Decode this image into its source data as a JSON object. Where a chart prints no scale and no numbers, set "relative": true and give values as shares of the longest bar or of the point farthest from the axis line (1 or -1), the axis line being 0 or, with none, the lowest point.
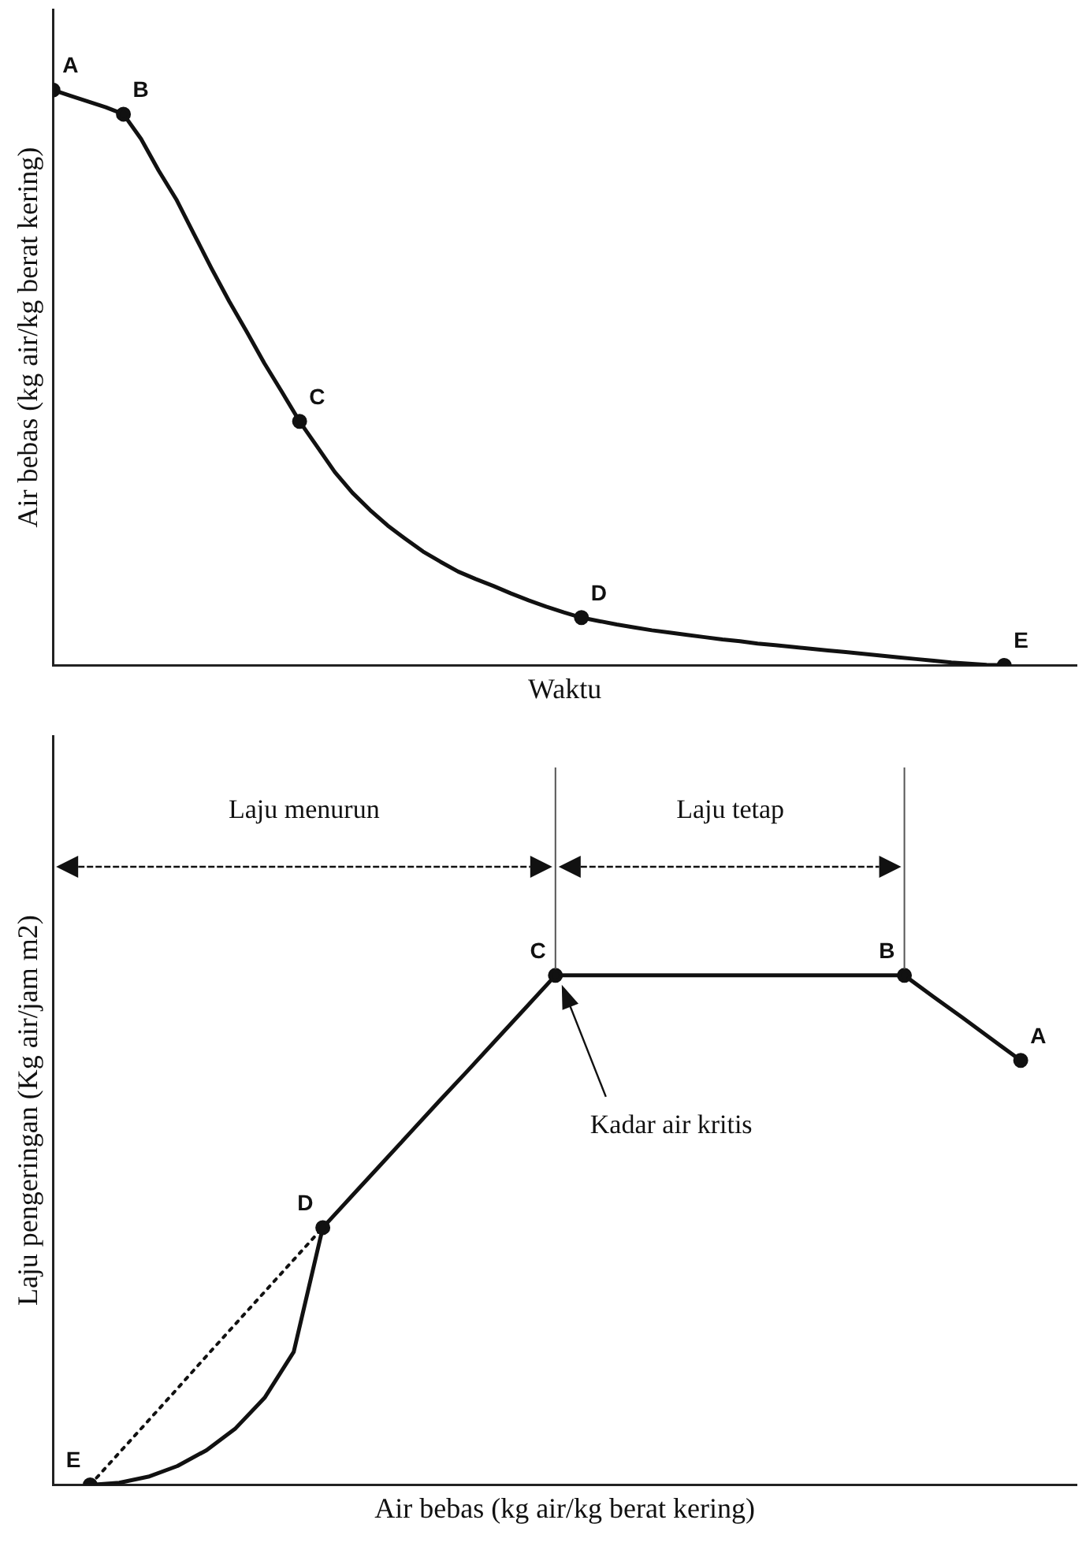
{
  "chart_data": [
    {
      "type": "line",
      "xlabel": "Waktu",
      "ylabel": "Air bebas (kg air/kg berat kering)",
      "relative": true,
      "grid": false,
      "legend": false,
      "categories": [
        null,
        null,
        null,
        null,
        null,
        null,
        null,
        null,
        null,
        null,
        null,
        null,
        null,
        null,
        null,
        null,
        null,
        null,
        null,
        null,
        null,
        null,
        null,
        null,
        null,
        null,
        null,
        null,
        null,
        null,
        null,
        null,
        null,
        null,
        null,
        null,
        null,
        null,
        null,
        null,
        null,
        null,
        null,
        null,
        null,
        null,
        null,
        null,
        null,
        null,
        null,
        null,
        null,
        null,
        null
      ],
      "series": [
        {
          "color": "#111111",
          "line_style": "solid",
          "values": [
            1,
            0.99,
            0.98,
            0.97,
            0.958,
            0.915,
            0.86,
            0.81,
            0.75,
            0.69,
            0.633,
            0.58,
            0.525,
            0.475,
            0.424,
            0.38,
            0.336,
            0.3,
            0.27,
            0.243,
            0.22,
            0.198,
            0.18,
            0.163,
            0.15,
            0.138,
            0.125,
            0.113,
            0.102,
            0.092,
            0.083,
            0.077,
            0.071,
            0.066,
            0.061,
            0.057,
            0.053,
            0.049,
            0.045,
            0.042,
            0.038,
            0.035,
            0.032,
            0.029,
            0.026,
            0.023,
            0.02,
            0.017,
            0.014,
            0.011,
            0.008,
            0.005,
            0.003,
            0.001,
            0
          ]
        }
      ],
      "annotations": [
        "A",
        "B",
        "C",
        "D",
        "E"
      ]
    },
    {
      "type": "line",
      "xlabel": "Air bebas (kg air/kg berat kering)",
      "ylabel": "Laju pengeringan (Kg air/jam m2)",
      "relative": true,
      "grid": false,
      "legend": false,
      "categories": [
        null,
        null,
        null,
        null,
        null,
        null,
        null,
        null,
        null,
        null,
        null,
        null,
        null,
        null,
        null,
        null,
        null,
        null,
        null,
        null,
        null,
        null,
        null,
        null,
        null,
        null,
        null,
        null,
        null,
        null,
        null,
        null,
        null
      ],
      "series": [
        {
          "color": "#111111",
          "line_style": "solid",
          "values": [
            0,
            0.004,
            0.016,
            0.037,
            0.068,
            0.111,
            0.171,
            0.261,
            0.505,
            0.567,
            0.629,
            0.691,
            0.753,
            0.814,
            0.876,
            0.938,
            1,
            1,
            1,
            1,
            1,
            1,
            1,
            1,
            1,
            1,
            1,
            1,
            1,
            0.958,
            0.917,
            0.875,
            0.833
          ]
        },
        {
          "color": "#111111",
          "line_style": "dotted",
          "values": [
            0,
            0.063,
            0.126,
            0.189,
            0.253,
            0.316,
            0.379,
            0.442,
            0.505,
            null,
            null,
            null,
            null,
            null,
            null,
            null,
            null,
            null,
            null,
            null,
            null,
            null,
            null,
            null,
            null,
            null,
            null,
            null,
            null,
            null,
            null,
            null,
            null
          ]
        }
      ],
      "annotations": [
        "A",
        "B",
        "C",
        "D",
        "E",
        "Laju menurun",
        "Laju tetap",
        "Kadar air kritis"
      ]
    }
  ]
}
